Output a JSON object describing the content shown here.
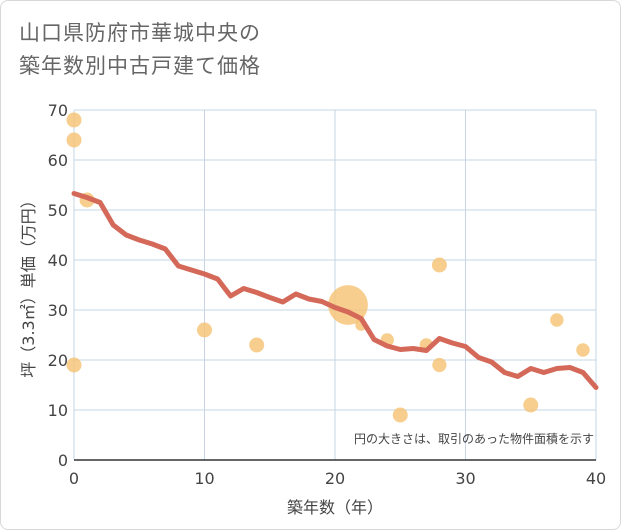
{
  "title": {
    "line1": "山口県防府市華城中央の",
    "line2": "築年数別中古戸建て価格"
  },
  "chart_data": {
    "type": "scatter",
    "xlabel": "築年数（年）",
    "ylabel": "坪（3.3㎡）単価（万円）",
    "xlim": [
      0,
      40
    ],
    "ylim": [
      0,
      70
    ],
    "xticks": [
      0,
      10,
      20,
      30,
      40
    ],
    "yticks": [
      0,
      10,
      20,
      30,
      40,
      50,
      60,
      70
    ],
    "grid": true,
    "note": "円の大きさは、取引のあった物件面積を示す",
    "colors": {
      "points": "#f5c06e",
      "trend": "#d4695a",
      "grid": "#c6d4e6"
    },
    "points": [
      {
        "x": 0,
        "y": 68,
        "size": 1
      },
      {
        "x": 0,
        "y": 64,
        "size": 1
      },
      {
        "x": 0,
        "y": 19,
        "size": 1
      },
      {
        "x": 1,
        "y": 52,
        "size": 1
      },
      {
        "x": 10,
        "y": 26,
        "size": 1
      },
      {
        "x": 14,
        "y": 23,
        "size": 1
      },
      {
        "x": 21,
        "y": 31,
        "size": 7
      },
      {
        "x": 22,
        "y": 27,
        "size": 0.6
      },
      {
        "x": 24,
        "y": 24,
        "size": 0.8
      },
      {
        "x": 25,
        "y": 9,
        "size": 1
      },
      {
        "x": 27,
        "y": 23,
        "size": 0.8
      },
      {
        "x": 28,
        "y": 39,
        "size": 1
      },
      {
        "x": 28,
        "y": 19,
        "size": 0.9
      },
      {
        "x": 35,
        "y": 11,
        "size": 1
      },
      {
        "x": 37,
        "y": 28,
        "size": 0.8
      },
      {
        "x": 39,
        "y": 22,
        "size": 0.8
      }
    ],
    "trend": {
      "x": [
        0,
        1,
        2,
        3,
        4,
        5,
        6,
        7,
        8,
        9,
        10,
        11,
        12,
        13,
        14,
        15,
        16,
        17,
        18,
        19,
        20,
        21,
        22,
        23,
        24,
        25,
        26,
        27,
        28,
        29,
        30,
        31,
        32,
        33,
        34,
        35,
        36,
        37,
        38,
        39,
        40
      ],
      "y": [
        53.3,
        52.5,
        51.5,
        47,
        45,
        44,
        43.2,
        42.2,
        38.8,
        38,
        37.2,
        36.2,
        32.8,
        34.3,
        33.5,
        32.5,
        31.6,
        33.2,
        32.2,
        31.7,
        30.5,
        29.6,
        28.3,
        24.1,
        22.8,
        22.1,
        22.3,
        21.9,
        24.3,
        23.4,
        22.7,
        20.5,
        19.6,
        17.5,
        16.7,
        18.3,
        17.5,
        18.3,
        18.5,
        17.5,
        14.5
      ]
    }
  }
}
